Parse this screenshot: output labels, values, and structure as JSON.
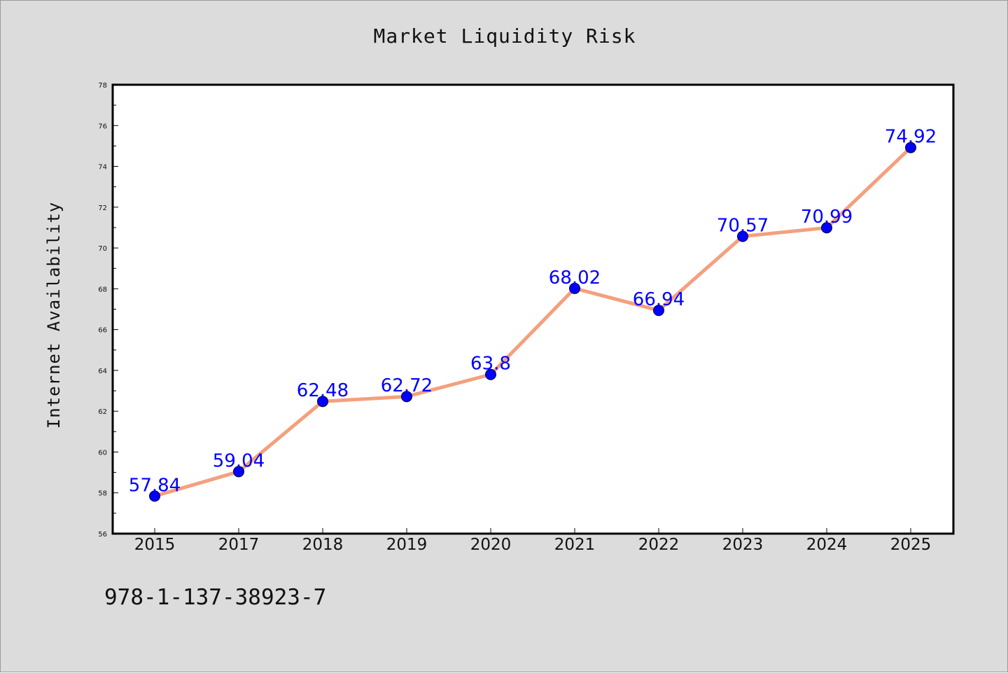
{
  "chart_data": {
    "type": "line",
    "title": "Market Liquidity Risk",
    "xlabel": "",
    "ylabel": "Internet Availability",
    "categories": [
      "2015",
      "2017",
      "2018",
      "2019",
      "2020",
      "2021",
      "2022",
      "2023",
      "2024",
      "2025"
    ],
    "series": [
      {
        "values": [
          57.84,
          59.04,
          62.48,
          62.72,
          63.8,
          68.02,
          66.94,
          70.57,
          70.99,
          74.92
        ]
      }
    ],
    "data_labels": [
      "57.84",
      "59.04",
      "62.48",
      "62.72",
      "63.8",
      "68.02",
      "66.94",
      "70.57",
      "70.99",
      "74.92"
    ],
    "ylim": [
      56,
      78
    ],
    "y_ticks": [
      56,
      58,
      60,
      62,
      64,
      66,
      68,
      70,
      72,
      74,
      76,
      78
    ],
    "grid": false,
    "line_color": "#f4a07e",
    "marker_color": "#0000ff",
    "label_color": "#0000ff"
  },
  "footer": {
    "isbn": "978-1-137-38923-7"
  }
}
